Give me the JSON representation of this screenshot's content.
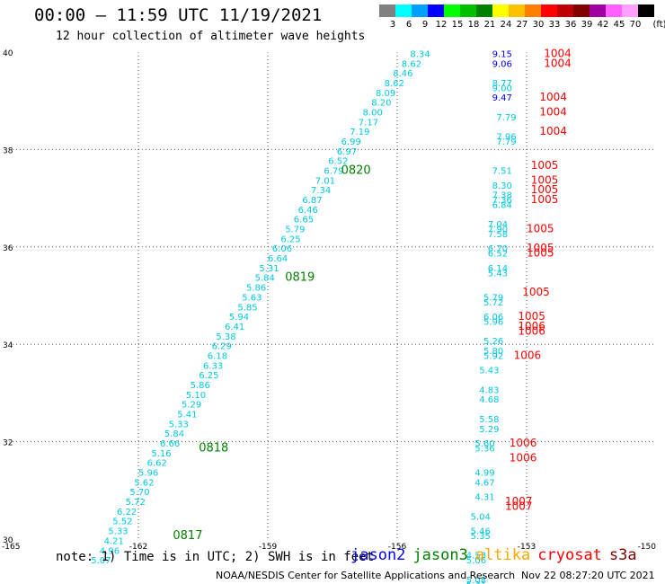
{
  "header": {
    "title": "00:00 – 11:59 UTC 11/19/2021",
    "subtitle": "12 hour collection of altimeter wave heights"
  },
  "color_scale": {
    "unit_label": "(ft)",
    "bins": [
      {
        "label": "3",
        "color": "#808080"
      },
      {
        "label": "6",
        "color": "#00ffff"
      },
      {
        "label": "9",
        "color": "#00a0ff"
      },
      {
        "label": "12",
        "color": "#0000ff"
      },
      {
        "label": "15",
        "color": "#00ff00"
      },
      {
        "label": "18",
        "color": "#00c000"
      },
      {
        "label": "21",
        "color": "#008000"
      },
      {
        "label": "24",
        "color": "#ffff00"
      },
      {
        "label": "27",
        "color": "#ffc000"
      },
      {
        "label": "30",
        "color": "#ff8000"
      },
      {
        "label": "33",
        "color": "#ff0000"
      },
      {
        "label": "36",
        "color": "#c00000"
      },
      {
        "label": "39",
        "color": "#800000"
      },
      {
        "label": "42",
        "color": "#a000a0"
      },
      {
        "label": "45",
        "color": "#ff60ff"
      },
      {
        "label": "70",
        "color": "#ffa0ff"
      },
      {
        "label": "",
        "color": "#000000"
      }
    ]
  },
  "axes": {
    "lat_ticks": [
      "40",
      "38",
      "36",
      "34",
      "32",
      "30"
    ],
    "lon_ticks": [
      "-165",
      "-162",
      "-159",
      "-156",
      "-153",
      "-150"
    ],
    "lat_range": [
      30,
      40
    ],
    "lon_range": [
      -165,
      -150
    ]
  },
  "tracks": {
    "colors": {
      "cyan": "#00c8e0",
      "blue": "#0000ff",
      "red": "#ff0000",
      "green": "#008000"
    },
    "track1_times": [
      {
        "label": "0820",
        "lat": 37.5,
        "lon": -157.3
      },
      {
        "label": "0819",
        "lat": 35.3,
        "lon": -158.6
      },
      {
        "label": "0818",
        "lat": 31.8,
        "lon": -160.6
      },
      {
        "label": "0817",
        "lat": 30.0,
        "lon": -161.2
      }
    ],
    "track1": [
      {
        "lat": 39.9,
        "lon": -155.7,
        "v": "8.34"
      },
      {
        "lat": 39.7,
        "lon": -155.9,
        "v": "8.62"
      },
      {
        "lat": 39.5,
        "lon": -156.1,
        "v": "8.46"
      },
      {
        "lat": 39.3,
        "lon": -156.3,
        "v": "8.62"
      },
      {
        "lat": 39.1,
        "lon": -156.5,
        "v": "8.09"
      },
      {
        "lat": 38.9,
        "lon": -156.6,
        "v": "8.20"
      },
      {
        "lat": 38.7,
        "lon": -156.8,
        "v": "8.00"
      },
      {
        "lat": 38.5,
        "lon": -156.9,
        "v": "7.17"
      },
      {
        "lat": 38.3,
        "lon": -157.1,
        "v": "7.19"
      },
      {
        "lat": 38.1,
        "lon": -157.3,
        "v": "6.99"
      },
      {
        "lat": 37.9,
        "lon": -157.4,
        "v": "6.97"
      },
      {
        "lat": 37.7,
        "lon": -157.6,
        "v": "6.52"
      },
      {
        "lat": 37.5,
        "lon": -157.7,
        "v": "6.79"
      },
      {
        "lat": 37.3,
        "lon": -157.9,
        "v": "7.01"
      },
      {
        "lat": 37.1,
        "lon": -158.0,
        "v": "7.34"
      },
      {
        "lat": 36.9,
        "lon": -158.2,
        "v": "6.87"
      },
      {
        "lat": 36.7,
        "lon": -158.3,
        "v": "6.46"
      },
      {
        "lat": 36.5,
        "lon": -158.4,
        "v": "6.65"
      },
      {
        "lat": 36.3,
        "lon": -158.6,
        "v": "5.79"
      },
      {
        "lat": 36.1,
        "lon": -158.7,
        "v": "6.25"
      },
      {
        "lat": 35.9,
        "lon": -158.9,
        "v": "6.06"
      },
      {
        "lat": 35.7,
        "lon": -159.0,
        "v": "6.64"
      },
      {
        "lat": 35.5,
        "lon": -159.2,
        "v": "5.31"
      },
      {
        "lat": 35.3,
        "lon": -159.3,
        "v": "5.84"
      },
      {
        "lat": 35.1,
        "lon": -159.5,
        "v": "5.86"
      },
      {
        "lat": 34.9,
        "lon": -159.6,
        "v": "5.63"
      },
      {
        "lat": 34.7,
        "lon": -159.7,
        "v": "5.85"
      },
      {
        "lat": 34.5,
        "lon": -159.9,
        "v": "5.94"
      },
      {
        "lat": 34.3,
        "lon": -160.0,
        "v": "6.41"
      },
      {
        "lat": 34.1,
        "lon": -160.2,
        "v": "5.38"
      },
      {
        "lat": 33.9,
        "lon": -160.3,
        "v": "6.29"
      },
      {
        "lat": 33.7,
        "lon": -160.4,
        "v": "6.18"
      },
      {
        "lat": 33.5,
        "lon": -160.5,
        "v": "6.33"
      },
      {
        "lat": 33.3,
        "lon": -160.6,
        "v": "6.25"
      },
      {
        "lat": 33.1,
        "lon": -160.8,
        "v": "5.86"
      },
      {
        "lat": 32.9,
        "lon": -160.9,
        "v": "5.10"
      },
      {
        "lat": 32.7,
        "lon": -161.0,
        "v": "5.29"
      },
      {
        "lat": 32.5,
        "lon": -161.1,
        "v": "5.41"
      },
      {
        "lat": 32.3,
        "lon": -161.3,
        "v": "5.33"
      },
      {
        "lat": 32.1,
        "lon": -161.4,
        "v": "5.84"
      },
      {
        "lat": 31.9,
        "lon": -161.5,
        "v": "6.66"
      },
      {
        "lat": 31.7,
        "lon": -161.7,
        "v": "5.16"
      },
      {
        "lat": 31.5,
        "lon": -161.8,
        "v": "6.62"
      },
      {
        "lat": 31.3,
        "lon": -162.0,
        "v": "5.96"
      },
      {
        "lat": 31.1,
        "lon": -162.1,
        "v": "5.62"
      },
      {
        "lat": 30.9,
        "lon": -162.2,
        "v": "5.70"
      },
      {
        "lat": 30.7,
        "lon": -162.3,
        "v": "5.72"
      },
      {
        "lat": 30.5,
        "lon": -162.5,
        "v": "6.22"
      },
      {
        "lat": 30.3,
        "lon": -162.6,
        "v": "5.52"
      },
      {
        "lat": 30.1,
        "lon": -162.7,
        "v": "5.33"
      },
      {
        "lat": 29.9,
        "lon": -162.8,
        "v": "4.21"
      },
      {
        "lat": 29.7,
        "lon": -162.9,
        "v": "4.96"
      },
      {
        "lat": 29.5,
        "lon": -163.1,
        "v": "5.07"
      }
    ],
    "track2_cyan": [
      {
        "lat": 39.3,
        "lon": -153.8,
        "v": "8.77"
      },
      {
        "lat": 39.2,
        "lon": -153.8,
        "v": "9.00"
      },
      {
        "lat": 38.6,
        "lon": -153.7,
        "v": "7.79"
      },
      {
        "lat": 38.2,
        "lon": -153.7,
        "v": "7.96"
      },
      {
        "lat": 38.1,
        "lon": -153.7,
        "v": "7.79"
      },
      {
        "lat": 37.5,
        "lon": -153.8,
        "v": "7.51"
      },
      {
        "lat": 37.2,
        "lon": -153.8,
        "v": "8.30"
      },
      {
        "lat": 37.0,
        "lon": -153.8,
        "v": "7.38"
      },
      {
        "lat": 36.9,
        "lon": -153.8,
        "v": "7.36"
      },
      {
        "lat": 36.8,
        "lon": -153.8,
        "v": "6.84"
      },
      {
        "lat": 36.4,
        "lon": -153.9,
        "v": "7.04"
      },
      {
        "lat": 36.3,
        "lon": -153.9,
        "v": "7.90"
      },
      {
        "lat": 36.2,
        "lon": -153.9,
        "v": "7.58"
      },
      {
        "lat": 35.9,
        "lon": -153.9,
        "v": "6.70"
      },
      {
        "lat": 35.8,
        "lon": -153.9,
        "v": "6.52"
      },
      {
        "lat": 35.5,
        "lon": -153.9,
        "v": "6.14"
      },
      {
        "lat": 35.4,
        "lon": -153.9,
        "v": "5.43"
      },
      {
        "lat": 34.9,
        "lon": -154.0,
        "v": "5.79"
      },
      {
        "lat": 34.8,
        "lon": -154.0,
        "v": "5.72"
      },
      {
        "lat": 34.5,
        "lon": -154.0,
        "v": "6.06"
      },
      {
        "lat": 34.4,
        "lon": -154.0,
        "v": "5.96"
      },
      {
        "lat": 34.0,
        "lon": -154.0,
        "v": "5.26"
      },
      {
        "lat": 33.8,
        "lon": -154.0,
        "v": "5.80"
      },
      {
        "lat": 33.7,
        "lon": -154.0,
        "v": "5.92"
      },
      {
        "lat": 33.4,
        "lon": -154.1,
        "v": "5.43"
      },
      {
        "lat": 33.0,
        "lon": -154.1,
        "v": "4.83"
      },
      {
        "lat": 32.8,
        "lon": -154.1,
        "v": "4.68"
      },
      {
        "lat": 32.4,
        "lon": -154.1,
        "v": "5.58"
      },
      {
        "lat": 32.2,
        "lon": -154.1,
        "v": "5.29"
      },
      {
        "lat": 31.9,
        "lon": -154.2,
        "v": "5.60"
      },
      {
        "lat": 31.8,
        "lon": -154.2,
        "v": "5.36"
      },
      {
        "lat": 31.3,
        "lon": -154.2,
        "v": "4.99"
      },
      {
        "lat": 31.1,
        "lon": -154.2,
        "v": "4.67"
      },
      {
        "lat": 30.8,
        "lon": -154.2,
        "v": "4.31"
      },
      {
        "lat": 30.4,
        "lon": -154.3,
        "v": "5.04"
      },
      {
        "lat": 30.1,
        "lon": -154.3,
        "v": "5.46"
      },
      {
        "lat": 30.0,
        "lon": -154.3,
        "v": "5.35"
      },
      {
        "lat": 29.6,
        "lon": -154.4,
        "v": "4.53"
      },
      {
        "lat": 29.5,
        "lon": -154.4,
        "v": "5.06"
      },
      {
        "lat": 29.1,
        "lon": -154.4,
        "v": "5.08"
      },
      {
        "lat": 29.0,
        "lon": -154.4,
        "v": "5.31"
      }
    ],
    "track2_blue": [
      {
        "lat": 39.9,
        "lon": -153.8,
        "v": "9.15"
      },
      {
        "lat": 39.7,
        "lon": -153.8,
        "v": "9.06"
      },
      {
        "lat": 39.0,
        "lon": -153.8,
        "v": "9.47"
      }
    ],
    "track2_red": [
      {
        "lat": 39.9,
        "lon": -152.6,
        "v": "1004"
      },
      {
        "lat": 39.7,
        "lon": -152.6,
        "v": "1004"
      },
      {
        "lat": 39.0,
        "lon": -152.7,
        "v": "1004"
      },
      {
        "lat": 38.7,
        "lon": -152.7,
        "v": "1004"
      },
      {
        "lat": 38.3,
        "lon": -152.7,
        "v": "1004"
      },
      {
        "lat": 37.6,
        "lon": -152.9,
        "v": "1005"
      },
      {
        "lat": 37.3,
        "lon": -152.9,
        "v": "1005"
      },
      {
        "lat": 37.1,
        "lon": -152.9,
        "v": "1005"
      },
      {
        "lat": 36.9,
        "lon": -152.9,
        "v": "1005"
      },
      {
        "lat": 36.3,
        "lon": -153.0,
        "v": "1005"
      },
      {
        "lat": 35.9,
        "lon": -153.0,
        "v": "1005"
      },
      {
        "lat": 35.8,
        "lon": -153.0,
        "v": "1005"
      },
      {
        "lat": 35.0,
        "lon": -153.1,
        "v": "1005"
      },
      {
        "lat": 34.5,
        "lon": -153.2,
        "v": "1005"
      },
      {
        "lat": 34.3,
        "lon": -153.2,
        "v": "1006"
      },
      {
        "lat": 34.2,
        "lon": -153.2,
        "v": "1006"
      },
      {
        "lat": 33.7,
        "lon": -153.3,
        "v": "1006"
      },
      {
        "lat": 31.9,
        "lon": -153.4,
        "v": "1006"
      },
      {
        "lat": 31.6,
        "lon": -153.4,
        "v": "1006"
      },
      {
        "lat": 30.7,
        "lon": -153.5,
        "v": "1007"
      },
      {
        "lat": 30.6,
        "lon": -153.5,
        "v": "1007"
      }
    ]
  },
  "footer": {
    "note": "note: 1) Time is in UTC; 2) SWH is in feet",
    "legend": [
      {
        "label": "jason2",
        "color": "#0000ff"
      },
      {
        "label": "jason3",
        "color": "#008000"
      },
      {
        "label": "altika",
        "color": "#ffa500"
      },
      {
        "label": "cryosat",
        "color": "#ff0000"
      },
      {
        "label": "s3a",
        "color": "#800000"
      }
    ],
    "credit": "NOAA/NESDIS Center for Satellite Applications and Research",
    "timestamp": "Nov 22 08:27:20 UTC 2021"
  }
}
